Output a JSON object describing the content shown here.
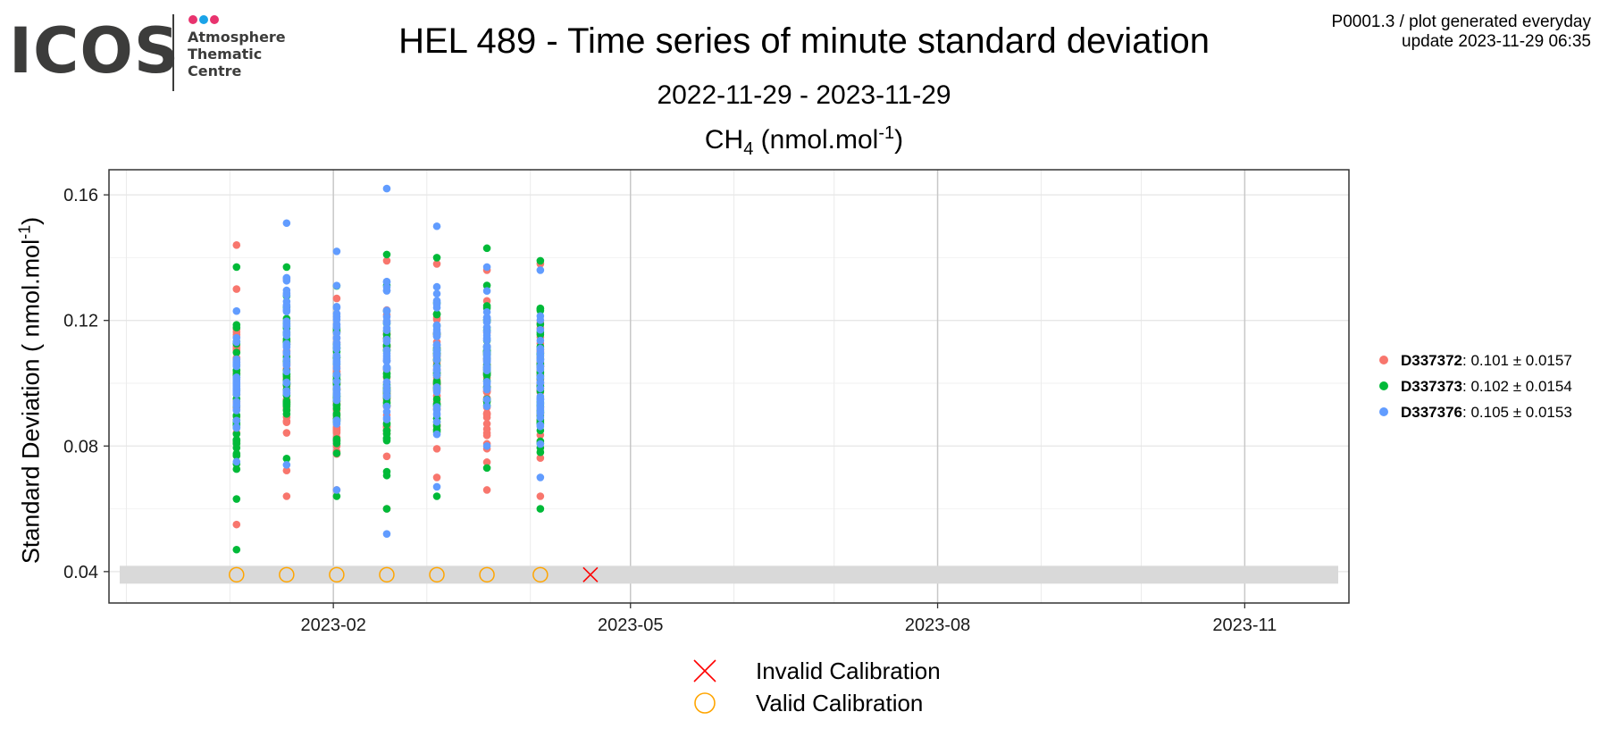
{
  "logo": {
    "wordmark": "ICOS",
    "subtitle_lines": [
      "Atmosphere",
      "Thematic",
      "Centre"
    ],
    "dot_colors": [
      "#e8336e",
      "#1aa3e8",
      "#e8336e"
    ]
  },
  "header": {
    "title": "HEL 489 - Time series of minute standard deviation",
    "date_range": "2022-11-29 - 2023-11-29",
    "meta_line1": "P0001.3 / plot generated everyday",
    "meta_line2": "update  2023-11-29 06:35"
  },
  "chart_data": {
    "type": "scatter",
    "title": "CH4 (nmol.mol-1)",
    "title_parts": {
      "species": "CH",
      "species_sub": "4",
      "unit_pre": " (nmol.mol",
      "unit_sup": "-1",
      "unit_post": ")"
    },
    "ylabel": "Standard Deviation ( nmol.mol-1)",
    "ylabel_parts": {
      "pre": "Standard Deviation ( nmol.mol",
      "sup": "-1",
      "post": ")"
    },
    "xlabel": "",
    "x_type": "date",
    "xlim": [
      "2022-11-29",
      "2023-11-29"
    ],
    "ylim": [
      0.03,
      0.168
    ],
    "x_ticks": [
      "2023-02",
      "2023-05",
      "2023-08",
      "2023-11"
    ],
    "y_ticks": [
      0.04,
      0.08,
      0.12,
      0.16
    ],
    "y_tick_labels": [
      "0.04",
      "0.08",
      "0.12",
      "0.16"
    ],
    "grid": true,
    "legend_position": "right",
    "series": [
      {
        "name": "D337372",
        "label": "D337372",
        "stats": ": 0.101 ± 0.0157",
        "color": "#f8766d",
        "groups": [
          {
            "date": "2023-01-03",
            "min": 0.055,
            "max": 0.144,
            "n": 40
          },
          {
            "date": "2023-01-18",
            "min": 0.064,
            "max": 0.133,
            "n": 40
          },
          {
            "date": "2023-02-02",
            "min": 0.066,
            "max": 0.127,
            "n": 40
          },
          {
            "date": "2023-02-17",
            "min": 0.06,
            "max": 0.139,
            "n": 40
          },
          {
            "date": "2023-03-04",
            "min": 0.07,
            "max": 0.138,
            "n": 40
          },
          {
            "date": "2023-03-19",
            "min": 0.066,
            "max": 0.136,
            "n": 40
          },
          {
            "date": "2023-04-04",
            "min": 0.064,
            "max": 0.138,
            "n": 40
          }
        ]
      },
      {
        "name": "D337373",
        "label": "D337373",
        "stats": ": 0.102 ± 0.0154",
        "color": "#00ba38",
        "groups": [
          {
            "date": "2023-01-03",
            "min": 0.047,
            "max": 0.137,
            "n": 40
          },
          {
            "date": "2023-01-18",
            "min": 0.076,
            "max": 0.137,
            "n": 40
          },
          {
            "date": "2023-02-02",
            "min": 0.064,
            "max": 0.131,
            "n": 40
          },
          {
            "date": "2023-02-17",
            "min": 0.06,
            "max": 0.141,
            "n": 40
          },
          {
            "date": "2023-03-04",
            "min": 0.064,
            "max": 0.14,
            "n": 40
          },
          {
            "date": "2023-03-19",
            "min": 0.073,
            "max": 0.143,
            "n": 40
          },
          {
            "date": "2023-04-04",
            "min": 0.06,
            "max": 0.139,
            "n": 40
          }
        ]
      },
      {
        "name": "D337376",
        "label": "D337376",
        "stats": ": 0.105 ± 0.0153",
        "color": "#619cff",
        "groups": [
          {
            "date": "2023-01-03",
            "min": 0.075,
            "max": 0.123,
            "n": 40
          },
          {
            "date": "2023-01-18",
            "min": 0.074,
            "max": 0.151,
            "n": 40
          },
          {
            "date": "2023-02-02",
            "min": 0.066,
            "max": 0.142,
            "n": 40
          },
          {
            "date": "2023-02-17",
            "min": 0.052,
            "max": 0.162,
            "n": 40
          },
          {
            "date": "2023-03-04",
            "min": 0.067,
            "max": 0.15,
            "n": 40
          },
          {
            "date": "2023-03-19",
            "min": 0.08,
            "max": 0.137,
            "n": 40
          },
          {
            "date": "2023-04-04",
            "min": 0.07,
            "max": 0.136,
            "n": 40
          }
        ]
      }
    ],
    "calibration_band": {
      "y": 0.039,
      "color": "#d9d9d9"
    },
    "calibrations": [
      {
        "date": "2023-01-03",
        "status": "valid"
      },
      {
        "date": "2023-01-18",
        "status": "valid"
      },
      {
        "date": "2023-02-02",
        "status": "valid"
      },
      {
        "date": "2023-02-17",
        "status": "valid"
      },
      {
        "date": "2023-03-04",
        "status": "valid"
      },
      {
        "date": "2023-03-19",
        "status": "valid"
      },
      {
        "date": "2023-04-04",
        "status": "valid"
      },
      {
        "date": "2023-04-19",
        "status": "invalid"
      }
    ],
    "calibration_legend": [
      {
        "status": "invalid",
        "label": "Invalid Calibration",
        "color": "#ff0000",
        "symbol": "cross-icon"
      },
      {
        "status": "valid",
        "label": "Valid Calibration",
        "color": "#ffa500",
        "symbol": "circle-icon"
      }
    ]
  }
}
